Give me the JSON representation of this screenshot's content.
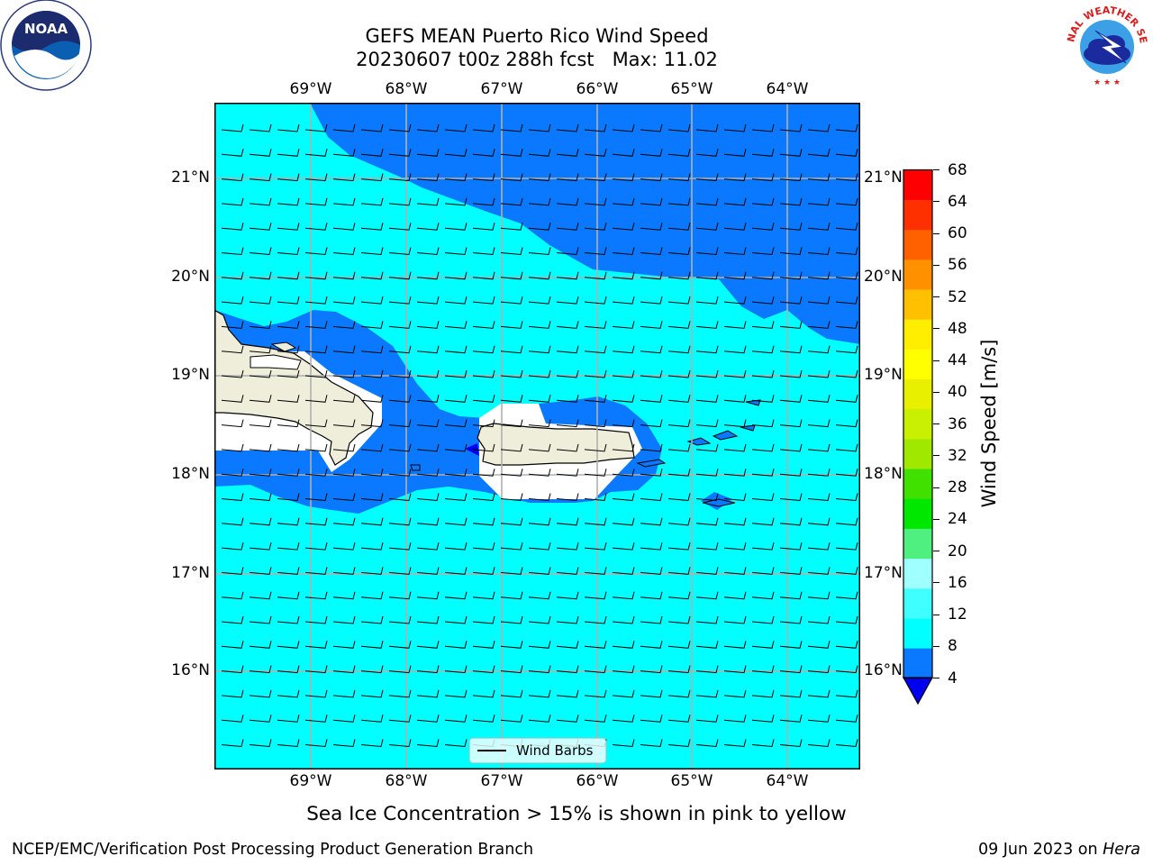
{
  "header": {
    "title_line1": "GEFS MEAN Puerto Rico Wind Speed",
    "title_line2": "20230607 t00z 288h fcst   Max: 11.02"
  },
  "logos": {
    "left": "NOAA",
    "right": "NATIONAL WEATHER SERVICE"
  },
  "map": {
    "lon_ticks": [
      "69°W",
      "68°W",
      "67°W",
      "66°W",
      "65°W",
      "64°W"
    ],
    "lat_ticks": [
      "21°N",
      "20°N",
      "19°N",
      "18°N",
      "17°N",
      "16°N"
    ],
    "legend_label": "Wind Barbs",
    "colors": {
      "land": "#efeedb",
      "cyan": "#00ffff",
      "blue": "#0a79ff",
      "deep_blue": "#0000f0",
      "grid": "#b0b0b0"
    }
  },
  "colorbar": {
    "label": "Wind Speed [m/s]",
    "ticks": [
      "68",
      "64",
      "60",
      "56",
      "52",
      "48",
      "44",
      "40",
      "36",
      "32",
      "28",
      "24",
      "20",
      "16",
      "12",
      "8",
      "4"
    ],
    "colors": [
      "#0a79ff",
      "#00ffff",
      "#40ffff",
      "#a0ffff",
      "#50f080",
      "#00e800",
      "#40e000",
      "#a0e800",
      "#c8f000",
      "#e8f000",
      "#ffff00",
      "#ffee00",
      "#ffc000",
      "#ff9000",
      "#ff6000",
      "#ff3000",
      "#ff0000"
    ],
    "extend_color": "#0000f0"
  },
  "notes": {
    "sea_ice": "Sea Ice Concentration > 15% is shown in pink to yellow",
    "footer_left": "NCEP/EMC/Verification Post Processing Product Generation Branch",
    "footer_date": "09 Jun 2023 on ",
    "footer_host": "Hera"
  }
}
